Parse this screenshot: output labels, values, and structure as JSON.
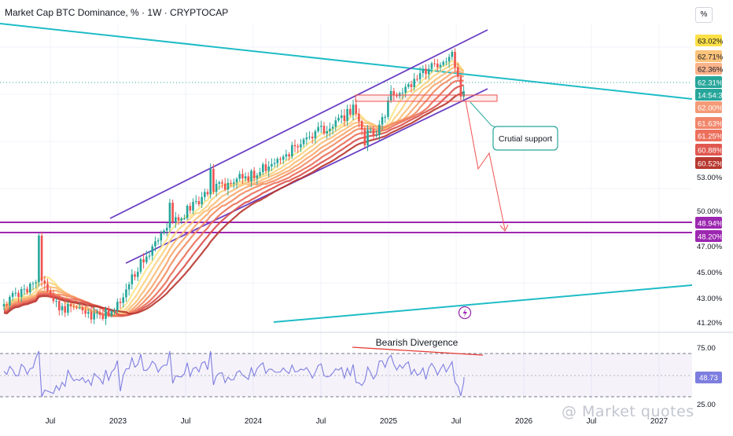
{
  "chart_data": [
    {
      "type": "candlestick",
      "title": "Market Cap BTC Dominance, % · 1W · CRYPTOCAP",
      "unit_button": "%",
      "x_tick_labels": [
        "Jul",
        "2023",
        "Jul",
        "2024",
        "Jul",
        "2025",
        "Jul",
        "2026",
        "Jul",
        "2027"
      ],
      "y_tick_labels": [
        "53.00%",
        "50.00%",
        "47.00%",
        "45.00%",
        "43.00%",
        "41.20%"
      ],
      "price_labels": [
        {
          "text": "63.02%",
          "color": "#fde047"
        },
        {
          "text": "62.71%",
          "color": "#fcc37a"
        },
        {
          "text": "62.36%",
          "color": "#fbb38a"
        },
        {
          "text": "62.31%",
          "color": "#26a69a"
        },
        {
          "text": "14:54:37",
          "color": "#26a69a"
        },
        {
          "text": "62.00%",
          "color": "#f49a76"
        },
        {
          "text": "61.63%",
          "color": "#f1866a"
        },
        {
          "text": "61.25%",
          "color": "#ec6f5c"
        },
        {
          "text": "60.88%",
          "color": "#e0584f"
        },
        {
          "text": "60.52%",
          "color": "#b7382f"
        },
        {
          "text": "48.94%",
          "color": "#9c27b0"
        },
        {
          "text": "48.20%",
          "color": "#9c27b0"
        }
      ],
      "horizontal_levels": [
        48.94,
        48.2
      ],
      "ylim": [
        40.5,
        65.5
      ],
      "annotations": {
        "support_label": "Crutial support",
        "divergence_label": "Bearish Divergence"
      },
      "rsi": {
        "current_label": "48.73",
        "y_tick_labels": [
          "75.00",
          "25.00"
        ],
        "levels": [
          70,
          50,
          30
        ],
        "ylim": [
          20,
          90
        ]
      },
      "colors": {
        "up": "#26a69a",
        "down": "#ef5350",
        "channel": "#6a3fc4",
        "trend": "#1fbcc6",
        "level": "#9c27b0",
        "rsi_line": "#7e7ee0"
      }
    }
  ],
  "watermark": "@ Market quotes"
}
